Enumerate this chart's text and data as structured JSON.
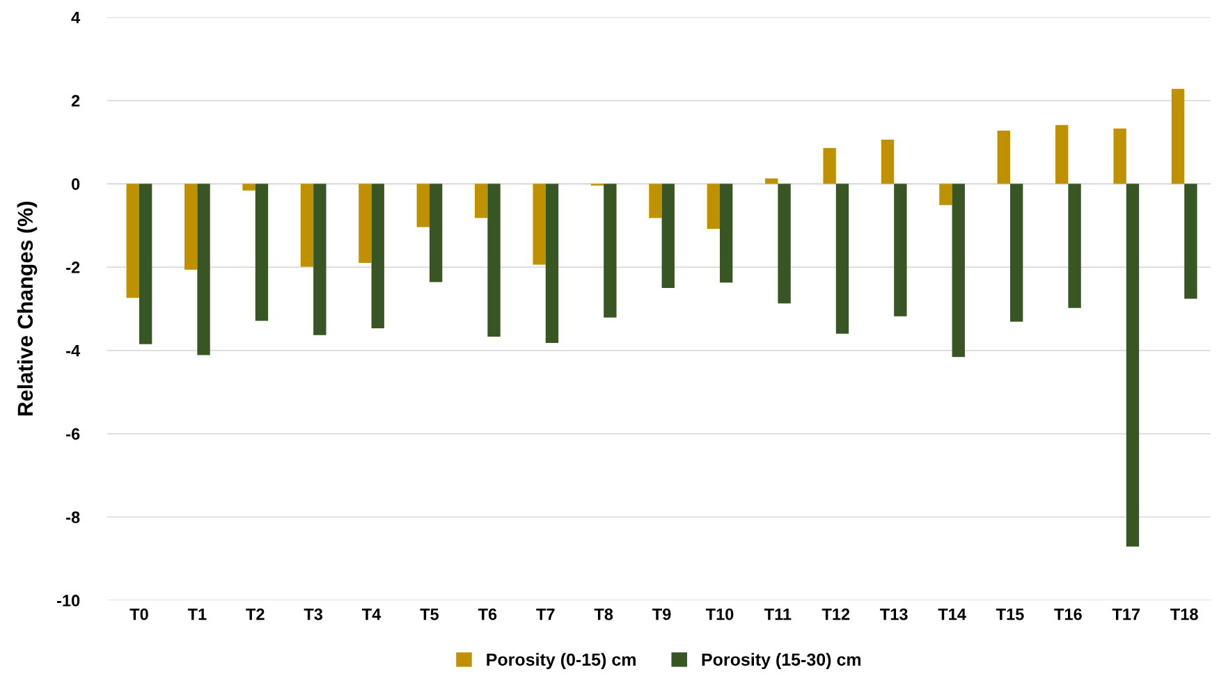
{
  "chart_data": {
    "type": "bar",
    "ylabel": "Relative Changes (%)",
    "categories": [
      "T0",
      "T1",
      "T2",
      "T3",
      "T4",
      "T5",
      "T6",
      "T7",
      "T8",
      "T9",
      "T10",
      "T11",
      "T12",
      "T13",
      "T14",
      "T15",
      "T16",
      "T17",
      "T18"
    ],
    "series": [
      {
        "name": "Porosity (0-15) cm",
        "color": "#bf9000",
        "values": [
          -2.74,
          -2.06,
          -0.16,
          -1.99,
          -1.9,
          -1.04,
          -0.82,
          -1.94,
          -0.04,
          -0.82,
          -1.08,
          0.13,
          0.86,
          1.06,
          -0.51,
          1.28,
          1.41,
          1.33,
          2.28
        ]
      },
      {
        "name": "Porosity (15-30) cm",
        "color": "#375623",
        "values": [
          -3.85,
          -4.11,
          -3.29,
          -3.63,
          -3.47,
          -2.36,
          -3.67,
          -3.82,
          -3.21,
          -2.5,
          -2.37,
          -2.87,
          -3.6,
          -3.18,
          -4.16,
          -3.31,
          -2.98,
          -8.71,
          -2.76
        ]
      }
    ],
    "ylim": [
      -10,
      4
    ],
    "yticks": [
      -10,
      -8,
      -6,
      -4,
      -2,
      0,
      2,
      4
    ],
    "grid": "y",
    "legend": "bottom"
  }
}
